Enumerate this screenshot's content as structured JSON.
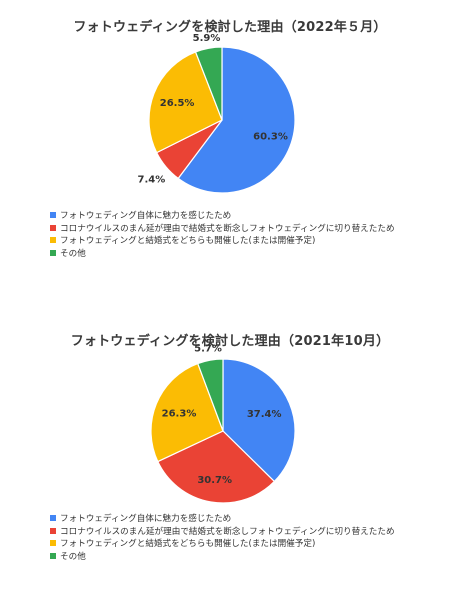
{
  "legend_labels": [
    "フォトウェディング自体に魅力を感じたため",
    "コロナウイルスのまん延が理由で結婚式を断念しフォトウェディングに切り替えたため",
    "フォトウェディングと結婚式をどちらも開催した(または開催予定)",
    "その他"
  ],
  "colors": [
    "#4285F4",
    "#EA4335",
    "#FBBC04",
    "#34A853"
  ],
  "chart_data": [
    {
      "type": "pie",
      "title": "フォトウェディングを検討した理由（2022年５月）",
      "categories": [
        "フォトウェディング自体に魅力を感じたため",
        "コロナウイルスのまん延が理由で結婚式を断念しフォトウェディングに切り替えたため",
        "フォトウェディングと結婚式をどちらも開催した(または開催予定)",
        "その他"
      ],
      "values": [
        60.3,
        7.4,
        26.5,
        5.9
      ],
      "data_labels": [
        "60.3%",
        "7.4%",
        "26.5%",
        "5.9%"
      ],
      "legend_position": "bottom-left"
    },
    {
      "type": "pie",
      "title": "フォトウェディングを検討した理由（2021年10月）",
      "categories": [
        "フォトウェディング自体に魅力を感じたため",
        "コロナウイルスのまん延が理由で結婚式を断念しフォトウェディングに切り替えたため",
        "フォトウェディングと結婚式をどちらも開催した(または開催予定)",
        "その他"
      ],
      "values": [
        37.4,
        30.7,
        26.3,
        5.7
      ],
      "data_labels": [
        "37.4%",
        "30.7%",
        "26.3%",
        "5.7%"
      ],
      "legend_position": "bottom-left"
    }
  ]
}
